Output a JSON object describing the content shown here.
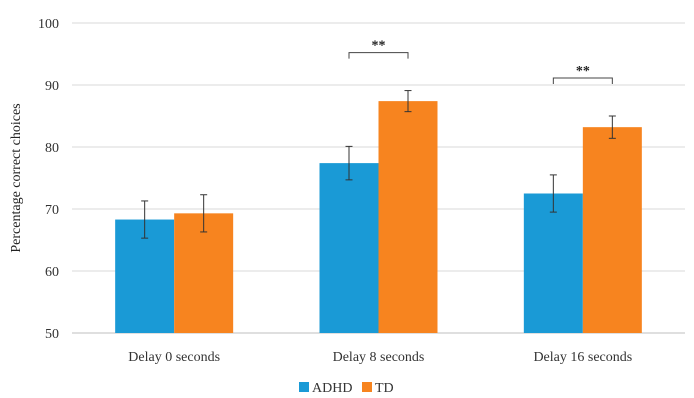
{
  "chart_data": {
    "type": "bar",
    "title": "",
    "xlabel": "",
    "ylabel": "Percentage correct choices",
    "ylim": [
      50,
      100
    ],
    "yticks": [
      50,
      60,
      70,
      80,
      90,
      100
    ],
    "grid": true,
    "legend_position": "bottom",
    "categories": [
      "Delay 0 seconds",
      "Delay 8 seconds",
      "Delay 16 seconds"
    ],
    "series": [
      {
        "name": "ADHD",
        "color": "#1a9ad6",
        "values": [
          68.3,
          77.4,
          72.5
        ],
        "errors": [
          3.0,
          2.7,
          3.0
        ]
      },
      {
        "name": "TD",
        "color": "#f7841f",
        "values": [
          69.3,
          87.4,
          83.2
        ],
        "errors": [
          3.0,
          1.7,
          1.8
        ]
      }
    ],
    "annotations": [
      {
        "text": "**",
        "category_index": 1
      },
      {
        "text": "**",
        "category_index": 2
      }
    ]
  }
}
